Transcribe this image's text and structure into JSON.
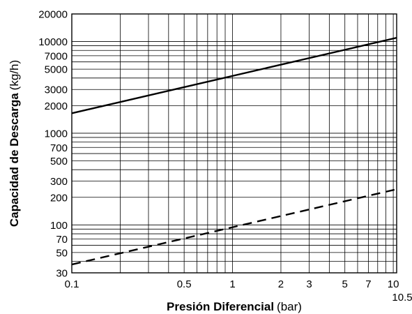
{
  "chart_data": {
    "type": "line",
    "x_scale": "log",
    "y_scale": "log",
    "xlim": [
      0.1,
      10.5
    ],
    "ylim": [
      30,
      20000
    ],
    "grid": true,
    "xlabel": {
      "bold": "Presión Diferencial",
      "unit": "(bar)"
    },
    "ylabel": {
      "bold": "Capacidad de Descarga",
      "unit": "(kg/h)"
    },
    "x_tick_labels": [
      {
        "value": 0.1,
        "label": "0.1"
      },
      {
        "value": 0.5,
        "label": "0.5"
      },
      {
        "value": 1,
        "label": "1"
      },
      {
        "value": 2,
        "label": "2"
      },
      {
        "value": 3,
        "label": "3"
      },
      {
        "value": 5,
        "label": "5"
      },
      {
        "value": 7,
        "label": "7"
      },
      {
        "value": 10,
        "label": "10"
      },
      {
        "value": 10.5,
        "label": "10.5"
      }
    ],
    "y_tick_labels": [
      {
        "value": 30,
        "label": "30"
      },
      {
        "value": 50,
        "label": "50"
      },
      {
        "value": 70,
        "label": "70"
      },
      {
        "value": 100,
        "label": "100"
      },
      {
        "value": 200,
        "label": "200"
      },
      {
        "value": 300,
        "label": "300"
      },
      {
        "value": 500,
        "label": "500"
      },
      {
        "value": 700,
        "label": "700"
      },
      {
        "value": 1000,
        "label": "1000"
      },
      {
        "value": 2000,
        "label": "2000"
      },
      {
        "value": 3000,
        "label": "3000"
      },
      {
        "value": 5000,
        "label": "5000"
      },
      {
        "value": 7000,
        "label": "7000"
      },
      {
        "value": 10000,
        "label": "10000"
      },
      {
        "value": 20000,
        "label": "20000"
      }
    ],
    "x_gridlines": [
      0.2,
      0.3,
      0.4,
      0.5,
      0.6,
      0.7,
      0.8,
      0.9,
      1,
      2,
      3,
      4,
      5,
      6,
      7,
      8,
      9,
      10
    ],
    "y_gridlines": [
      40,
      50,
      60,
      70,
      80,
      90,
      100,
      200,
      300,
      400,
      500,
      600,
      700,
      800,
      900,
      1000,
      2000,
      3000,
      4000,
      5000,
      6000,
      7000,
      8000,
      9000,
      10000
    ],
    "series": [
      {
        "style": "solid",
        "x": [
          0.1,
          10.5
        ],
        "y": [
          1650,
          11000
        ]
      },
      {
        "style": "dashed",
        "x": [
          0.1,
          10.5
        ],
        "y": [
          37,
          245
        ]
      }
    ]
  }
}
